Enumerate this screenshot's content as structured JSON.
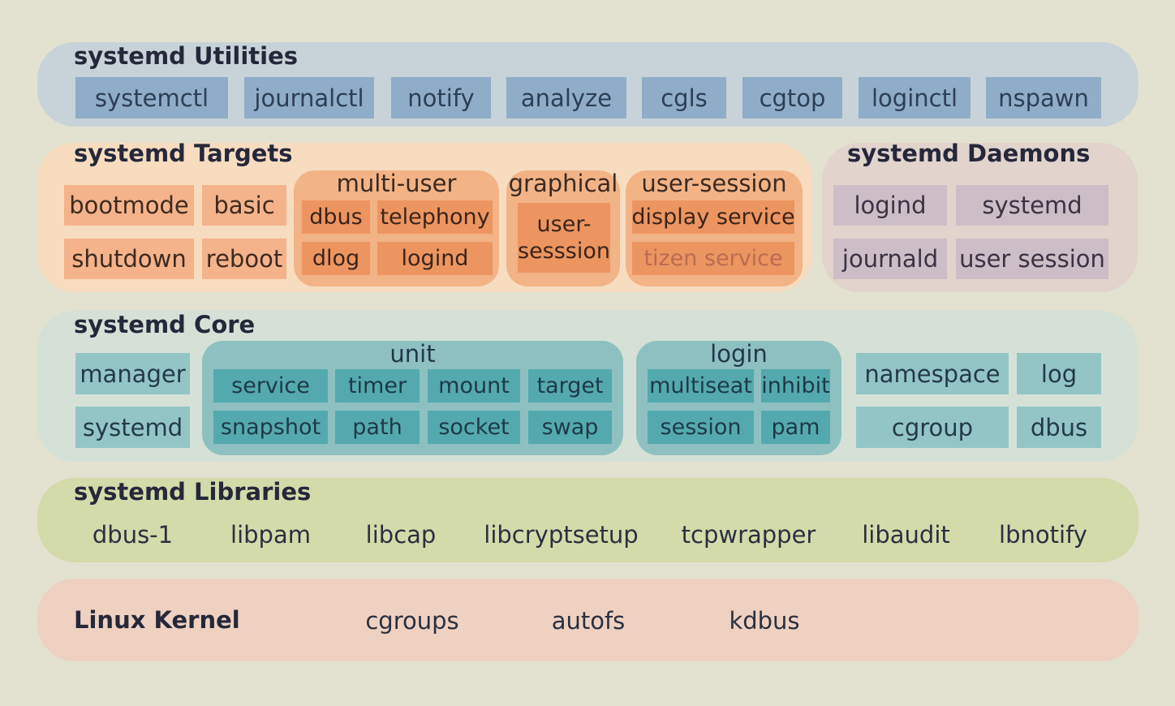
{
  "utilities": {
    "title": "systemd Utilities",
    "items": [
      "systemctl",
      "journalctl",
      "notify",
      "analyze",
      "cgls",
      "cgtop",
      "loginctl",
      "nspawn"
    ]
  },
  "targets": {
    "title": "systemd Targets",
    "items": [
      "bootmode",
      "basic",
      "shutdown",
      "reboot"
    ],
    "multi_user": {
      "label": "multi-user",
      "items": [
        "dbus",
        "telephony",
        "dlog",
        "logind"
      ]
    },
    "graphical": {
      "label": "graphical",
      "item": "user-\nsesssion"
    },
    "user_session": {
      "label": "user-session",
      "items": [
        "display service",
        "tizen service"
      ]
    }
  },
  "daemons": {
    "title": "systemd Daemons",
    "items": [
      "logind",
      "systemd",
      "journald",
      "user session"
    ]
  },
  "core": {
    "title": "systemd Core",
    "left": [
      "manager",
      "systemd"
    ],
    "unit": {
      "label": "unit",
      "items": [
        "service",
        "timer",
        "mount",
        "target",
        "snapshot",
        "path",
        "socket",
        "swap"
      ]
    },
    "login": {
      "label": "login",
      "items": [
        "multiseat",
        "inhibit",
        "session",
        "pam"
      ]
    },
    "right": [
      "namespace",
      "log",
      "cgroup",
      "dbus"
    ]
  },
  "libraries": {
    "title": "systemd Libraries",
    "items": [
      "dbus-1",
      "libpam",
      "libcap",
      "libcryptsetup",
      "tcpwrapper",
      "libaudit",
      "lbnotify"
    ]
  },
  "kernel": {
    "title": "Linux Kernel",
    "items": [
      "cgroups",
      "autofs",
      "kdbus"
    ]
  },
  "colors": {
    "background": "#e3e2d1",
    "utilities": "#8fadc8",
    "targets": "#f4b38b",
    "targets_inner": "#ed9560",
    "daemons": "#cdbdc6",
    "core": "#93c5c6",
    "core_inner": "#54a9ae",
    "libraries": "#bdcb8d",
    "kernel": "#d8938f"
  }
}
